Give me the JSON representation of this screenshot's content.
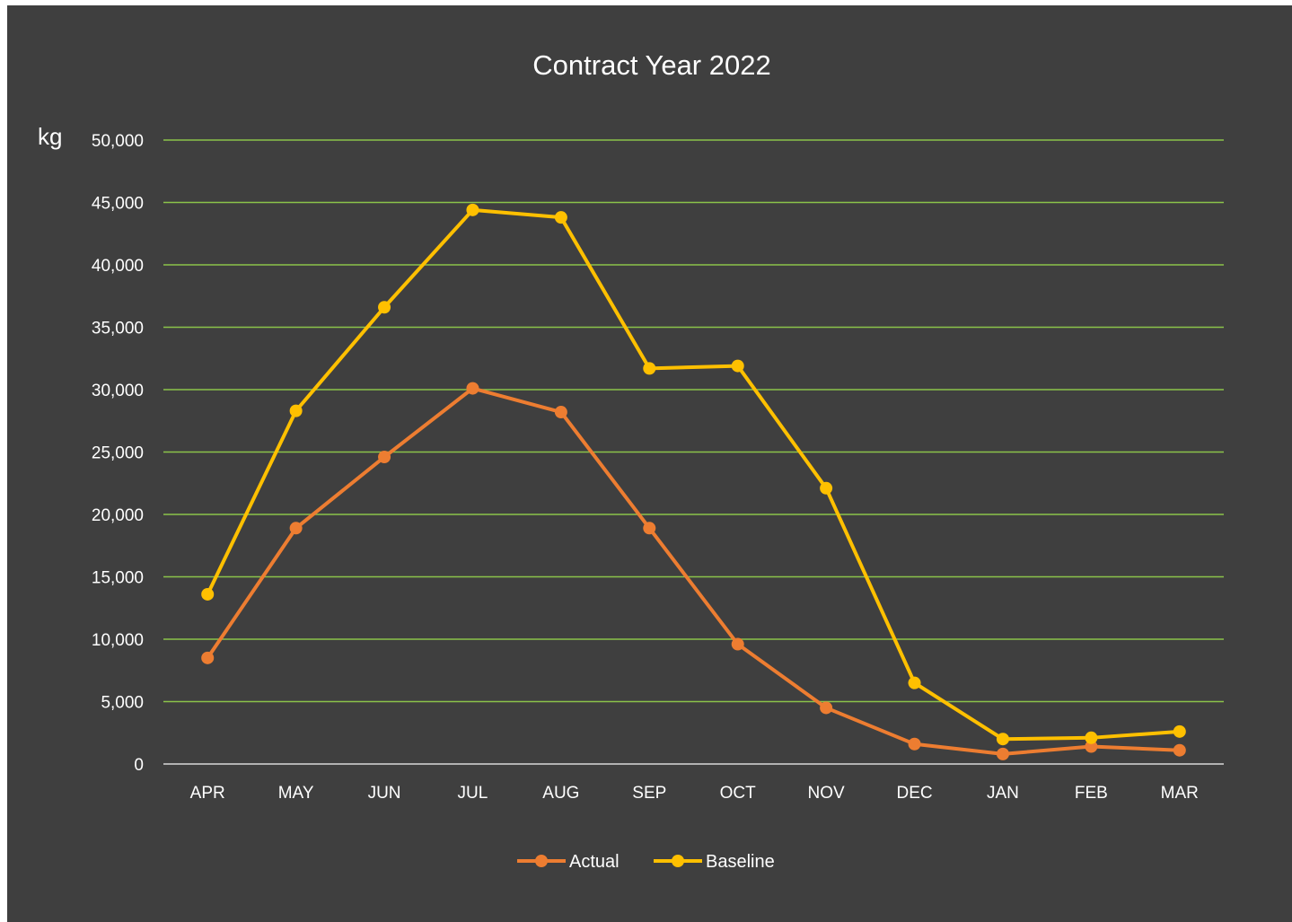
{
  "chart_data": {
    "type": "line",
    "title": "Contract Year 2022",
    "ylabel": "kg",
    "xlabel": "",
    "categories": [
      "APR",
      "MAY",
      "JUN",
      "JUL",
      "AUG",
      "SEP",
      "OCT",
      "NOV",
      "DEC",
      "JAN",
      "FEB",
      "MAR"
    ],
    "ylim": [
      0,
      50000
    ],
    "yticks": [
      0,
      5000,
      10000,
      15000,
      20000,
      25000,
      30000,
      35000,
      40000,
      45000,
      50000
    ],
    "ytick_labels": [
      "0",
      "5,000",
      "10,000",
      "15,000",
      "20,000",
      "25,000",
      "30,000",
      "35,000",
      "40,000",
      "45,000",
      "50,000"
    ],
    "grid": true,
    "legend_position": "bottom",
    "series": [
      {
        "name": "Actual",
        "color": "#ed7d31",
        "values": [
          8500,
          18900,
          24600,
          30100,
          28200,
          18900,
          9600,
          4500,
          1600,
          800,
          1400,
          1100
        ]
      },
      {
        "name": "Baseline",
        "color": "#ffc000",
        "values": [
          13600,
          28300,
          36600,
          44400,
          43800,
          31700,
          31900,
          22100,
          6500,
          2000,
          2100,
          2600
        ]
      }
    ]
  }
}
